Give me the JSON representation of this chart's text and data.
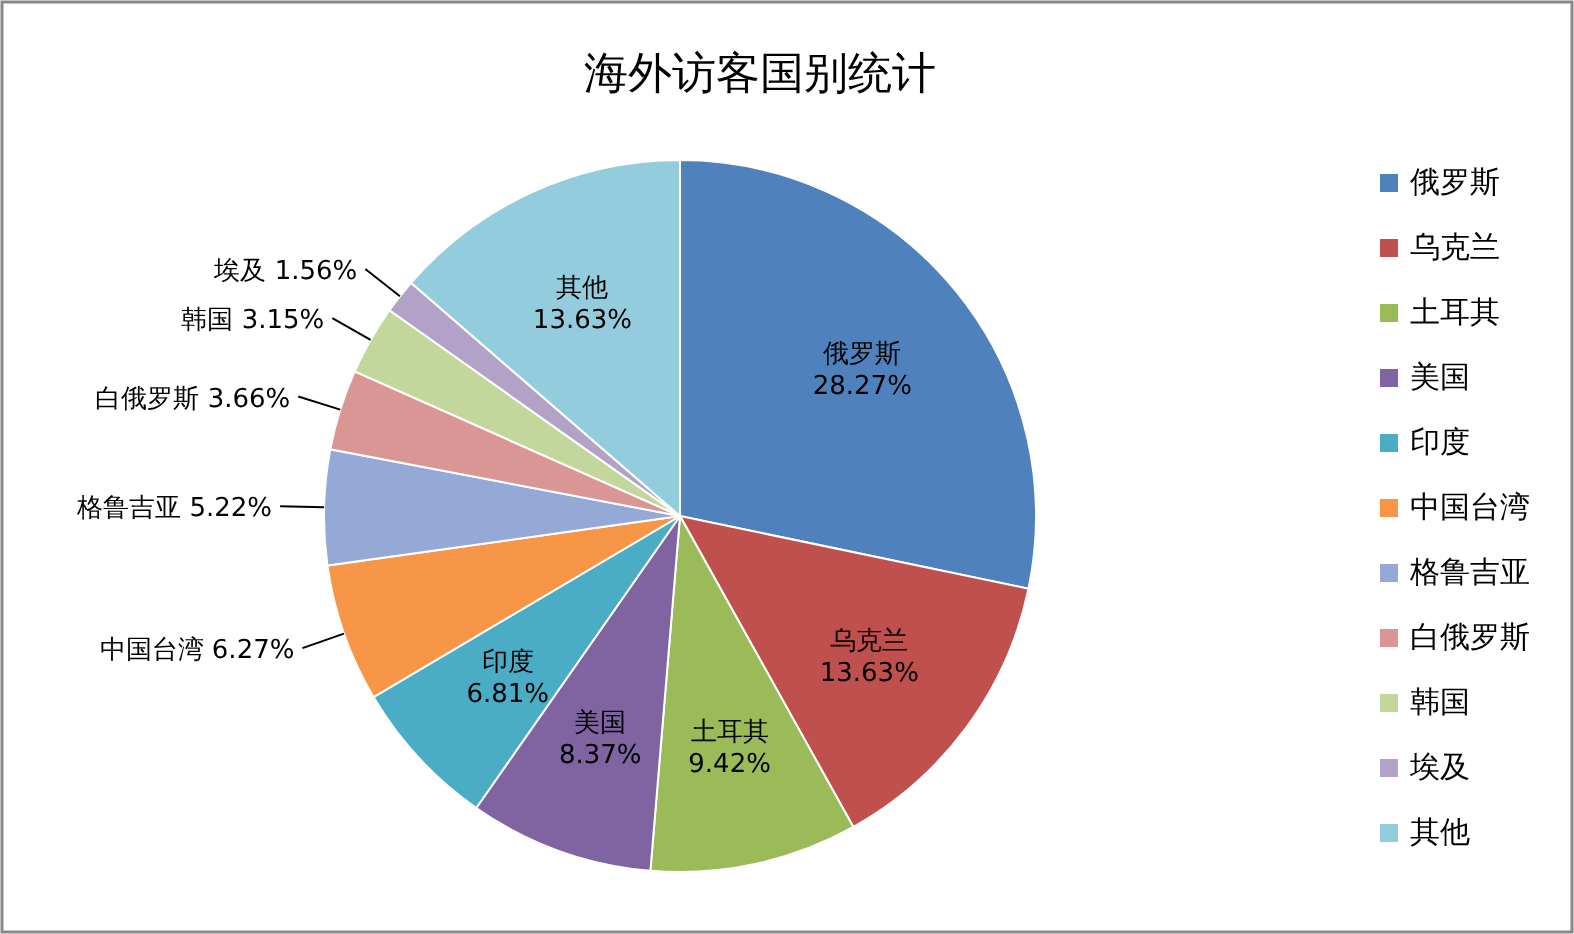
{
  "chart_data": {
    "type": "pie",
    "title": "海外访客国别统计",
    "categories": [
      "俄罗斯",
      "乌克兰",
      "土耳其",
      "美国",
      "印度",
      "中国台湾",
      "格鲁吉亚",
      "白俄罗斯",
      "韩国",
      "埃及",
      "其他"
    ],
    "values": [
      28.27,
      13.63,
      9.42,
      8.37,
      6.81,
      6.27,
      5.22,
      3.66,
      3.15,
      1.56,
      13.63
    ],
    "value_labels": [
      "28.27%",
      "13.63%",
      "9.42%",
      "8.37%",
      "6.81%",
      "6.27%",
      "5.22%",
      "3.66%",
      "3.15%",
      "1.56%",
      "13.63%"
    ],
    "colors": [
      "#4f81bd",
      "#c0504d",
      "#9bbb59",
      "#8064a2",
      "#4bacc6",
      "#f79646",
      "#95a9d6",
      "#da9694",
      "#c3d69b",
      "#b3a2c7",
      "#93cddd"
    ],
    "legend": "right"
  }
}
